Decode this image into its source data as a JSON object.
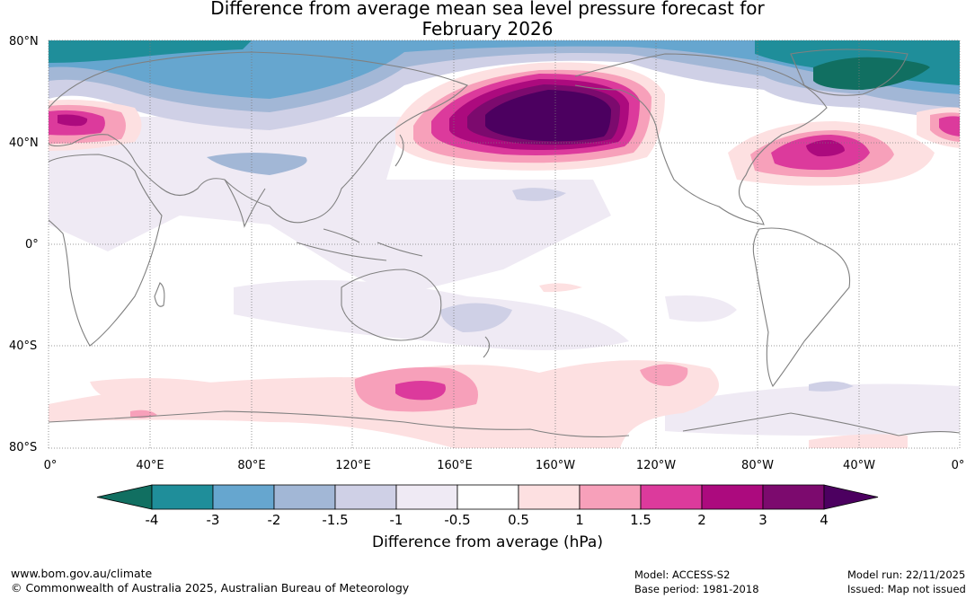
{
  "title": {
    "line1": "Difference from average mean sea level pressure forecast for",
    "line2": "February 2026"
  },
  "map": {
    "lat_labels": [
      "80°N",
      "40°N",
      "0°",
      "40°S",
      "80°S"
    ],
    "lon_labels": [
      "0°",
      "40°E",
      "80°E",
      "120°E",
      "160°E",
      "160°W",
      "120°W",
      "80°W",
      "40°W",
      "0°"
    ]
  },
  "anomalies": [
    {
      "name": "north-pacific-high",
      "peak_hpa": 4,
      "sign": "positive"
    },
    {
      "name": "north-atlantic-high",
      "peak_hpa": 2,
      "sign": "positive"
    },
    {
      "name": "europe-high",
      "peak_hpa": 2,
      "sign": "positive"
    },
    {
      "name": "southern-ocean-high-160e",
      "peak_hpa": 1.5,
      "sign": "positive"
    },
    {
      "name": "southern-ocean-high-120w",
      "peak_hpa": 1.5,
      "sign": "positive"
    },
    {
      "name": "greenland-low",
      "peak_hpa": -4,
      "sign": "negative"
    },
    {
      "name": "siberia-low",
      "peak_hpa": -3,
      "sign": "negative"
    },
    {
      "name": "arctic-low",
      "peak_hpa": -3,
      "sign": "negative"
    }
  ],
  "colorbar": {
    "ticks": [
      "-4",
      "-3",
      "-2",
      "-1.5",
      "-1",
      "-0.5",
      "0.5",
      "1",
      "1.5",
      "2",
      "3",
      "4"
    ],
    "colors": [
      "#116f61",
      "#1f8e9a",
      "#66a6cf",
      "#a2b7d6",
      "#cfd0e6",
      "#efeaf4",
      "#ffffff",
      "#fde0e1",
      "#f7a0ba",
      "#dc3a9c",
      "#ac0a7e",
      "#7c0a6e",
      "#4c0060"
    ],
    "title": "Difference from average (hPa)"
  },
  "footer": {
    "website": "www.bom.gov.au/climate",
    "copyright": "© Commonwealth of Australia 2025, Australian Bureau of Meteorology",
    "model": "Model: ACCESS-S2",
    "base_period": "Base period: 1981-2018",
    "model_run": "Model run: 22/11/2025",
    "issued": "Issued: Map not issued"
  }
}
